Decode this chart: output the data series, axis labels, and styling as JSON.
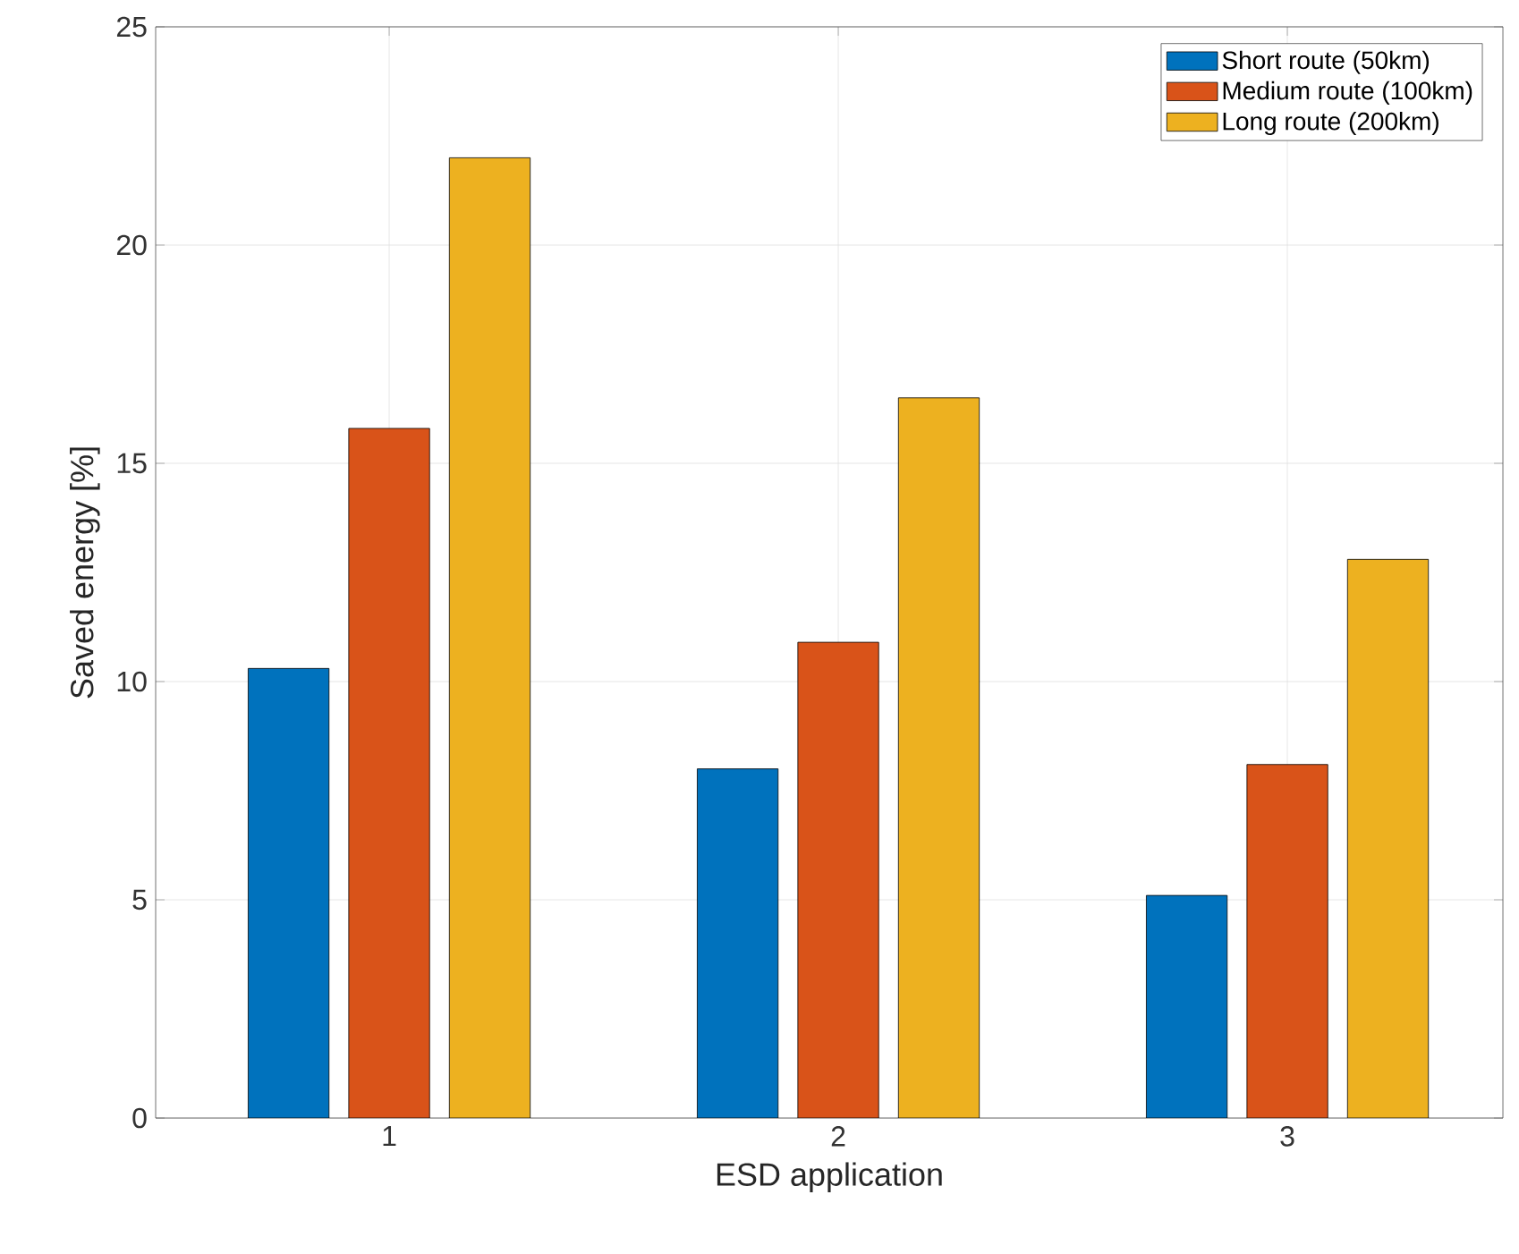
{
  "chart_data": {
    "type": "bar",
    "xlabel": "ESD application",
    "ylabel": "Saved energy [%]",
    "categories": [
      "1",
      "2",
      "3"
    ],
    "series": [
      {
        "name": "Short route (50km)",
        "color": "#0072bd",
        "values": [
          10.3,
          8.0,
          5.1
        ]
      },
      {
        "name": "Medium route (100km)",
        "color": "#d95319",
        "values": [
          15.8,
          10.9,
          8.1
        ]
      },
      {
        "name": "Long route (200km)",
        "color": "#edb120",
        "values": [
          22.0,
          16.5,
          12.8
        ]
      }
    ],
    "ylim": [
      0,
      25
    ],
    "yticks": [
      0,
      5,
      10,
      15,
      20,
      25
    ],
    "grid": true,
    "legend": "top right"
  }
}
